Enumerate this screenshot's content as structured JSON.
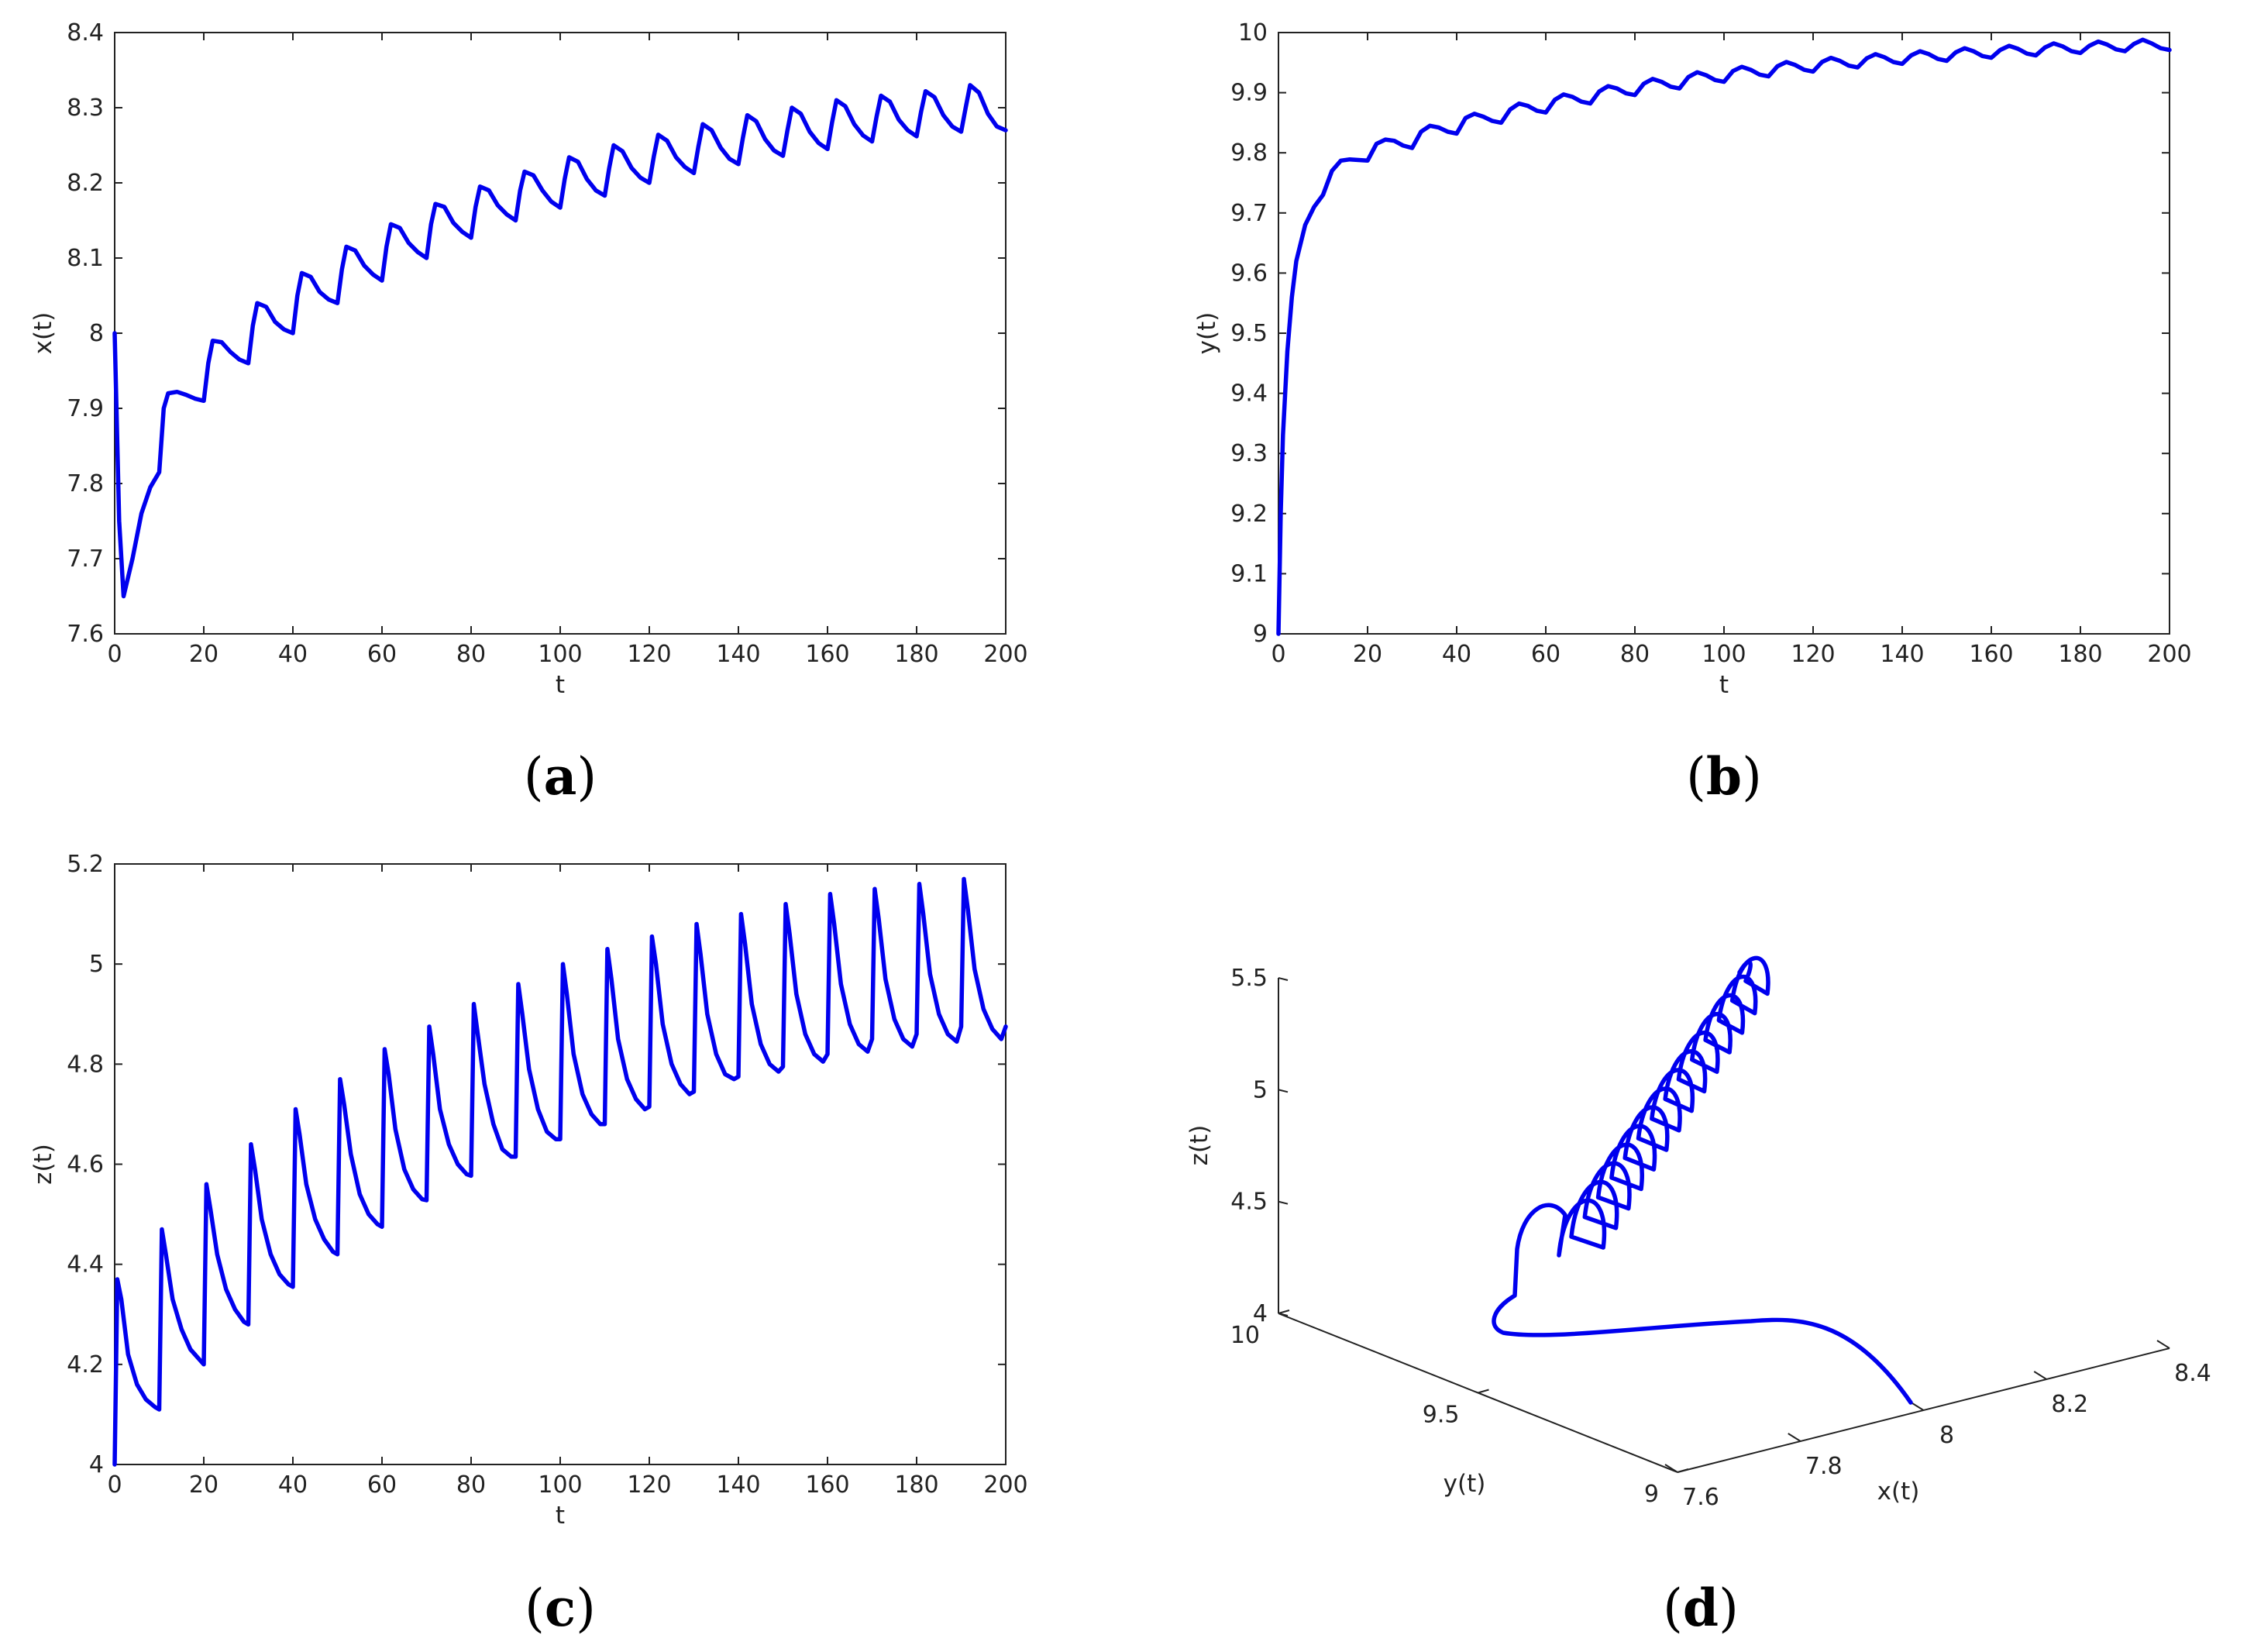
{
  "chart_data": [
    {
      "id": "a",
      "type": "line",
      "panel_label": "a",
      "xlabel": "t",
      "ylabel": "x(t)",
      "xlim": [
        0,
        200
      ],
      "ylim": [
        7.6,
        8.4
      ],
      "xticks": [
        "0",
        "20",
        "40",
        "60",
        "80",
        "100",
        "120",
        "140",
        "160",
        "180",
        "200"
      ],
      "yticks": [
        "7.6",
        "7.7",
        "7.8",
        "7.9",
        "8",
        "8.1",
        "8.2",
        "8.3",
        "8.4"
      ],
      "series": [
        {
          "name": "x(t)",
          "x": [
            0,
            1,
            2,
            4,
            6,
            8,
            10,
            11,
            12,
            14,
            16,
            18,
            20,
            21,
            22,
            24,
            26,
            28,
            30,
            31,
            32,
            34,
            36,
            38,
            40,
            41,
            42,
            44,
            46,
            48,
            50,
            51,
            52,
            54,
            56,
            58,
            60,
            61,
            62,
            64,
            66,
            68,
            70,
            71,
            72,
            74,
            76,
            78,
            80,
            81,
            82,
            84,
            86,
            88,
            90,
            91,
            92,
            94,
            96,
            98,
            100,
            101,
            102,
            104,
            106,
            108,
            110,
            111,
            112,
            114,
            116,
            118,
            120,
            121,
            122,
            124,
            126,
            128,
            130,
            131,
            132,
            134,
            136,
            138,
            140,
            141,
            142,
            144,
            146,
            148,
            150,
            151,
            152,
            154,
            156,
            158,
            160,
            161,
            162,
            164,
            166,
            168,
            170,
            171,
            172,
            174,
            176,
            178,
            180,
            181,
            182,
            184,
            186,
            188,
            190,
            191,
            192,
            194,
            196,
            198,
            200
          ],
          "y": [
            8.0,
            7.75,
            7.65,
            7.7,
            7.76,
            7.795,
            7.815,
            7.9,
            7.92,
            7.922,
            7.918,
            7.913,
            7.91,
            7.96,
            7.99,
            7.988,
            7.975,
            7.965,
            7.96,
            8.01,
            8.04,
            8.035,
            8.015,
            8.005,
            8.0,
            8.05,
            8.08,
            8.075,
            8.055,
            8.045,
            8.04,
            8.085,
            8.115,
            8.11,
            8.09,
            8.078,
            8.07,
            8.115,
            8.145,
            8.14,
            8.12,
            8.108,
            8.1,
            8.145,
            8.172,
            8.168,
            8.147,
            8.135,
            8.127,
            8.168,
            8.195,
            8.19,
            8.17,
            8.158,
            8.15,
            8.19,
            8.215,
            8.21,
            8.19,
            8.175,
            8.167,
            8.205,
            8.234,
            8.228,
            8.205,
            8.19,
            8.183,
            8.22,
            8.25,
            8.242,
            8.22,
            8.207,
            8.2,
            8.235,
            8.264,
            8.256,
            8.234,
            8.221,
            8.213,
            8.248,
            8.278,
            8.27,
            8.247,
            8.232,
            8.225,
            8.26,
            8.29,
            8.282,
            8.258,
            8.243,
            8.236,
            8.27,
            8.3,
            8.292,
            8.268,
            8.253,
            8.245,
            8.28,
            8.31,
            8.302,
            8.278,
            8.263,
            8.255,
            8.288,
            8.316,
            8.308,
            8.284,
            8.27,
            8.262,
            8.295,
            8.322,
            8.314,
            8.29,
            8.275,
            8.268,
            8.3,
            8.33,
            8.32,
            8.292,
            8.275,
            8.27
          ]
        }
      ]
    },
    {
      "id": "b",
      "type": "line",
      "panel_label": "b",
      "xlabel": "t",
      "ylabel": "y(t)",
      "xlim": [
        0,
        200
      ],
      "ylim": [
        9,
        10
      ],
      "xticks": [
        "0",
        "20",
        "40",
        "60",
        "80",
        "100",
        "120",
        "140",
        "160",
        "180",
        "200"
      ],
      "yticks": [
        "9",
        "9.1",
        "9.2",
        "9.3",
        "9.4",
        "9.5",
        "9.6",
        "9.7",
        "9.8",
        "9.9",
        "10"
      ],
      "series": [
        {
          "name": "y(t)",
          "x": [
            0,
            0.5,
            1,
            2,
            3,
            4,
            6,
            8,
            10,
            12,
            14,
            16,
            18,
            20,
            22,
            24,
            26,
            28,
            30,
            32,
            34,
            36,
            38,
            40,
            42,
            44,
            46,
            48,
            50,
            52,
            54,
            56,
            58,
            60,
            62,
            64,
            66,
            68,
            70,
            72,
            74,
            76,
            78,
            80,
            82,
            84,
            86,
            88,
            90,
            92,
            94,
            96,
            98,
            100,
            102,
            104,
            106,
            108,
            110,
            112,
            114,
            116,
            118,
            120,
            122,
            124,
            126,
            128,
            130,
            132,
            134,
            136,
            138,
            140,
            142,
            144,
            146,
            148,
            150,
            152,
            154,
            156,
            158,
            160,
            162,
            164,
            166,
            168,
            170,
            172,
            174,
            176,
            178,
            180,
            182,
            184,
            186,
            188,
            190,
            192,
            194,
            196,
            198,
            200
          ],
          "y": [
            9.0,
            9.2,
            9.33,
            9.47,
            9.56,
            9.62,
            9.68,
            9.71,
            9.73,
            9.77,
            9.787,
            9.789,
            9.788,
            9.787,
            9.815,
            9.822,
            9.82,
            9.812,
            9.808,
            9.835,
            9.845,
            9.842,
            9.835,
            9.832,
            9.858,
            9.865,
            9.86,
            9.853,
            9.85,
            9.872,
            9.882,
            9.878,
            9.87,
            9.867,
            9.888,
            9.897,
            9.893,
            9.885,
            9.882,
            9.902,
            9.911,
            9.907,
            9.899,
            9.896,
            9.915,
            9.923,
            9.918,
            9.91,
            9.907,
            9.926,
            9.934,
            9.929,
            9.921,
            9.918,
            9.936,
            9.943,
            9.938,
            9.93,
            9.927,
            9.944,
            9.951,
            9.946,
            9.938,
            9.935,
            9.951,
            9.958,
            9.953,
            9.945,
            9.942,
            9.957,
            9.964,
            9.959,
            9.951,
            9.948,
            9.962,
            9.969,
            9.964,
            9.956,
            9.953,
            9.967,
            9.974,
            9.969,
            9.961,
            9.958,
            9.971,
            9.978,
            9.973,
            9.965,
            9.962,
            9.975,
            9.982,
            9.977,
            9.969,
            9.966,
            9.978,
            9.985,
            9.98,
            9.972,
            9.969,
            9.981,
            9.988,
            9.982,
            9.974,
            9.971
          ]
        }
      ]
    },
    {
      "id": "c",
      "type": "line",
      "panel_label": "c",
      "xlabel": "t",
      "ylabel": "z(t)",
      "xlim": [
        0,
        200
      ],
      "ylim": [
        4,
        5.2
      ],
      "xticks": [
        "0",
        "20",
        "40",
        "60",
        "80",
        "100",
        "120",
        "140",
        "160",
        "180",
        "200"
      ],
      "yticks": [
        "4",
        "4.2",
        "4.4",
        "4.6",
        "4.8",
        "5",
        "5.2"
      ],
      "series": [
        {
          "name": "z(t)",
          "x": [
            0,
            0.6,
            1.5,
            3,
            5,
            7,
            9,
            10,
            10.6,
            11.5,
            13,
            15,
            17,
            19,
            20,
            20.6,
            21.5,
            23,
            25,
            27,
            29,
            30,
            30.6,
            31.5,
            33,
            35,
            37,
            39,
            40,
            40.6,
            41.5,
            43,
            45,
            47,
            49,
            50,
            50.6,
            51.5,
            53,
            55,
            57,
            59,
            60,
            60.6,
            61.5,
            63,
            65,
            67,
            69,
            70,
            70.6,
            71.5,
            73,
            75,
            77,
            79,
            80,
            80.6,
            81.5,
            83,
            85,
            87,
            89,
            90,
            90.6,
            91.5,
            93,
            95,
            97,
            99,
            100,
            100.6,
            101.5,
            103,
            105,
            107,
            109,
            110,
            110.6,
            111.5,
            113,
            115,
            117,
            119,
            120,
            120.6,
            121.5,
            123,
            125,
            127,
            129,
            130,
            130.6,
            131.5,
            133,
            135,
            137,
            139,
            140,
            140.6,
            141.5,
            143,
            145,
            147,
            149,
            150,
            150.6,
            151.5,
            153,
            155,
            157,
            159,
            160,
            160.6,
            161.5,
            163,
            165,
            167,
            169,
            170,
            170.6,
            171.5,
            173,
            175,
            177,
            179,
            180,
            180.6,
            181.5,
            183,
            185,
            187,
            189,
            190,
            190.6,
            191.5,
            193,
            195,
            197,
            199,
            200
          ],
          "y": [
            4.0,
            4.37,
            4.33,
            4.22,
            4.16,
            4.13,
            4.115,
            4.11,
            4.47,
            4.42,
            4.33,
            4.27,
            4.23,
            4.21,
            4.2,
            4.56,
            4.51,
            4.42,
            4.35,
            4.31,
            4.285,
            4.28,
            4.64,
            4.59,
            4.49,
            4.42,
            4.38,
            4.36,
            4.355,
            4.71,
            4.66,
            4.56,
            4.49,
            4.45,
            4.425,
            4.42,
            4.77,
            4.72,
            4.62,
            4.54,
            4.5,
            4.48,
            4.475,
            4.83,
            4.78,
            4.67,
            4.59,
            4.55,
            4.53,
            4.528,
            4.875,
            4.82,
            4.71,
            4.64,
            4.6,
            4.58,
            4.577,
            4.92,
            4.86,
            4.76,
            4.68,
            4.63,
            4.615,
            4.615,
            4.96,
            4.9,
            4.79,
            4.71,
            4.665,
            4.65,
            4.65,
            5.0,
            4.94,
            4.82,
            4.74,
            4.7,
            4.68,
            4.68,
            5.03,
            4.97,
            4.85,
            4.77,
            4.73,
            4.71,
            4.715,
            5.055,
            5.0,
            4.88,
            4.8,
            4.76,
            4.74,
            4.745,
            5.08,
            5.02,
            4.9,
            4.82,
            4.78,
            4.77,
            4.775,
            5.1,
            5.04,
            4.92,
            4.84,
            4.8,
            4.785,
            4.795,
            5.12,
            5.06,
            4.94,
            4.86,
            4.82,
            4.805,
            4.82,
            5.14,
            5.08,
            4.96,
            4.88,
            4.84,
            4.825,
            4.85,
            5.15,
            5.09,
            4.97,
            4.89,
            4.85,
            4.835,
            4.86,
            5.16,
            5.1,
            4.98,
            4.9,
            4.86,
            4.845,
            4.875,
            5.17,
            5.11,
            4.99,
            4.91,
            4.87,
            4.85,
            4.875
          ]
        }
      ]
    },
    {
      "id": "d",
      "type": "line3d",
      "panel_label": "d",
      "xlabel": "x(t)",
      "ylabel": "y(t)",
      "zlabel": "z(t)",
      "xlim": [
        7.6,
        8.4
      ],
      "ylim": [
        9,
        10
      ],
      "zlim": [
        4,
        5.5
      ],
      "xticks": [
        "7.6",
        "7.8",
        "8",
        "8.2",
        "8.4"
      ],
      "yticks": [
        "9",
        "9.5",
        "10"
      ],
      "zticks": [
        "4",
        "4.5",
        "5",
        "5.5"
      ],
      "loops": 14
    }
  ]
}
